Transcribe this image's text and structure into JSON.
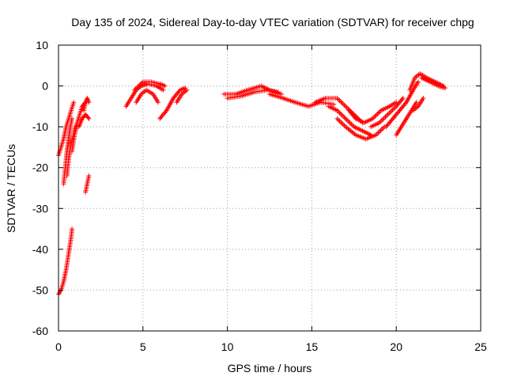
{
  "colors": {
    "series": "#ff0000",
    "grid": "#a0a0a0",
    "axis": "#000000",
    "background": "#ffffff"
  },
  "chart_data": {
    "type": "scatter",
    "title": "Day 135 of 2024, Sidereal Day-to-day VTEC variation (SDTVAR) for receiver chpg",
    "xlabel": "GPS time / hours",
    "ylabel": "SDTVAR / TECUs",
    "xlim": [
      0,
      25
    ],
    "ylim": [
      -60,
      10
    ],
    "xticks": [
      0,
      5,
      10,
      15,
      20,
      25
    ],
    "yticks": [
      -60,
      -50,
      -40,
      -30,
      -20,
      -10,
      0,
      10
    ],
    "xtick_labels": [
      "0",
      "5",
      "10",
      "15",
      "20",
      "25"
    ],
    "ytick_labels": [
      "-60",
      "-50",
      "-40",
      "-30",
      "-20",
      "-10",
      "0",
      "10"
    ],
    "grid": true,
    "marker": "plus",
    "series": [
      {
        "name": "SDTVAR",
        "tracks": [
          [
            [
              0.0,
              -51
            ],
            [
              0.15,
              -50
            ],
            [
              0.3,
              -48
            ],
            [
              0.45,
              -45
            ],
            [
              0.6,
              -41
            ],
            [
              0.75,
              -37
            ],
            [
              0.8,
              -35
            ]
          ],
          [
            [
              0.0,
              -17
            ],
            [
              0.15,
              -15
            ],
            [
              0.3,
              -13
            ],
            [
              0.45,
              -10
            ],
            [
              0.6,
              -8
            ],
            [
              0.75,
              -6
            ],
            [
              0.9,
              -4
            ]
          ],
          [
            [
              0.3,
              -24
            ],
            [
              0.4,
              -20
            ],
            [
              0.5,
              -16
            ],
            [
              0.6,
              -13
            ],
            [
              0.7,
              -10
            ],
            [
              0.8,
              -8
            ]
          ],
          [
            [
              0.5,
              -22
            ],
            [
              0.6,
              -18
            ],
            [
              0.75,
              -14
            ],
            [
              0.9,
              -12
            ],
            [
              1.0,
              -10
            ]
          ],
          [
            [
              0.8,
              -16
            ],
            [
              0.95,
              -12
            ],
            [
              1.1,
              -9
            ],
            [
              1.25,
              -7
            ],
            [
              1.4,
              -5
            ],
            [
              1.6,
              -4
            ]
          ],
          [
            [
              1.2,
              -10
            ],
            [
              1.4,
              -8
            ],
            [
              1.6,
              -7
            ],
            [
              1.8,
              -8
            ]
          ],
          [
            [
              1.5,
              -6
            ],
            [
              1.6,
              -4
            ],
            [
              1.7,
              -3
            ],
            [
              1.8,
              -4
            ]
          ],
          [
            [
              1.6,
              -26
            ],
            [
              1.7,
              -24
            ],
            [
              1.8,
              -22
            ]
          ],
          [
            [
              4.0,
              -5
            ],
            [
              4.3,
              -3
            ],
            [
              4.6,
              -1
            ],
            [
              4.9,
              0
            ],
            [
              5.3,
              0.5
            ],
            [
              5.8,
              0
            ],
            [
              6.2,
              -1
            ]
          ],
          [
            [
              4.6,
              -4
            ],
            [
              4.9,
              -2
            ],
            [
              5.2,
              -1
            ],
            [
              5.6,
              -2
            ],
            [
              5.9,
              -4
            ]
          ],
          [
            [
              4.5,
              -1
            ],
            [
              5.0,
              1
            ],
            [
              5.5,
              1
            ],
            [
              6.0,
              0.5
            ],
            [
              6.3,
              0
            ]
          ],
          [
            [
              6.0,
              -8
            ],
            [
              6.4,
              -6
            ],
            [
              6.8,
              -3
            ],
            [
              7.2,
              -1
            ],
            [
              7.5,
              -0.5
            ]
          ],
          [
            [
              7.0,
              -4
            ],
            [
              7.3,
              -2
            ],
            [
              7.6,
              -1
            ]
          ],
          [
            [
              9.8,
              -2
            ],
            [
              10.5,
              -2
            ],
            [
              11.2,
              -1
            ],
            [
              12.0,
              0
            ],
            [
              12.5,
              -1
            ],
            [
              13.0,
              -1.5
            ]
          ],
          [
            [
              10.0,
              -3
            ],
            [
              10.8,
              -2.5
            ],
            [
              11.6,
              -1.5
            ],
            [
              12.4,
              -1
            ],
            [
              13.2,
              -2
            ]
          ],
          [
            [
              12.5,
              -2
            ],
            [
              13.3,
              -3
            ],
            [
              14.0,
              -4
            ],
            [
              14.8,
              -5
            ],
            [
              15.5,
              -4
            ],
            [
              16.3,
              -4.5
            ]
          ],
          [
            [
              15.2,
              -4
            ],
            [
              15.8,
              -3
            ],
            [
              16.5,
              -3
            ],
            [
              17.0,
              -5
            ],
            [
              17.5,
              -7
            ],
            [
              18.0,
              -9
            ]
          ],
          [
            [
              16.0,
              -5
            ],
            [
              16.5,
              -6
            ],
            [
              17.0,
              -8
            ],
            [
              17.5,
              -10
            ],
            [
              18.0,
              -11
            ],
            [
              18.5,
              -12
            ]
          ],
          [
            [
              16.5,
              -8
            ],
            [
              17.0,
              -10
            ],
            [
              17.6,
              -12
            ],
            [
              18.2,
              -13
            ],
            [
              18.8,
              -12
            ],
            [
              19.3,
              -10
            ]
          ],
          [
            [
              17.2,
              -6
            ],
            [
              17.6,
              -8
            ],
            [
              18.1,
              -9
            ],
            [
              18.6,
              -8
            ],
            [
              19.1,
              -6
            ],
            [
              19.6,
              -5
            ],
            [
              20.0,
              -4
            ]
          ],
          [
            [
              18.5,
              -10
            ],
            [
              19.0,
              -9
            ],
            [
              19.5,
              -7
            ],
            [
              20.0,
              -5
            ],
            [
              20.4,
              -3
            ]
          ],
          [
            [
              19.4,
              -10
            ],
            [
              19.8,
              -8
            ],
            [
              20.2,
              -6
            ],
            [
              20.6,
              -4
            ],
            [
              21.0,
              -1
            ],
            [
              21.3,
              1
            ]
          ],
          [
            [
              20.0,
              -12
            ],
            [
              20.3,
              -10
            ],
            [
              20.6,
              -8
            ],
            [
              20.9,
              -6
            ],
            [
              21.2,
              -4
            ]
          ],
          [
            [
              20.8,
              -1
            ],
            [
              21.1,
              2
            ],
            [
              21.4,
              3
            ],
            [
              21.8,
              2
            ],
            [
              22.3,
              1
            ],
            [
              22.8,
              0
            ]
          ],
          [
            [
              21.0,
              -6
            ],
            [
              21.3,
              -5
            ],
            [
              21.6,
              -3
            ]
          ],
          [
            [
              21.5,
              2
            ],
            [
              22.0,
              1
            ],
            [
              22.5,
              0
            ],
            [
              22.9,
              -0.5
            ]
          ]
        ]
      }
    ]
  }
}
